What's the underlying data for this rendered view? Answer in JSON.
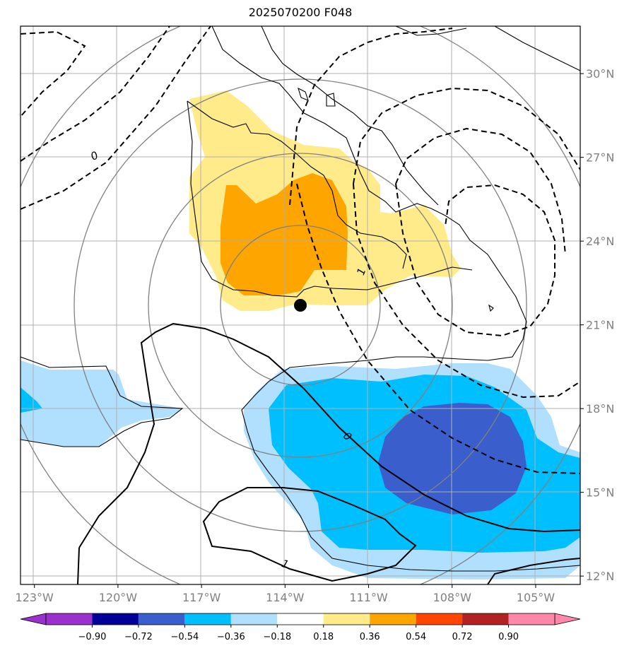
{
  "title": "2025070200 F048",
  "chart_data": {
    "type": "heatmap",
    "title": "2025070200 F048",
    "x_ticks": [
      "123°W",
      "120°W",
      "117°W",
      "114°W",
      "111°W",
      "108°W",
      "105°W"
    ],
    "y_ticks": [
      "30°N",
      "27°N",
      "24°N",
      "21°N",
      "18°N",
      "15°N",
      "12°N"
    ],
    "x_values": [
      -123,
      -120,
      -117,
      -114,
      -111,
      -108,
      -105
    ],
    "y_values": [
      30,
      27,
      24,
      21,
      18,
      15,
      12
    ],
    "xlim": [
      -123.5,
      -103.4
    ],
    "ylim": [
      11.7,
      31.7
    ],
    "grid": true,
    "colorbar": {
      "orientation": "horizontal",
      "extend": "both",
      "levels": [
        -0.9,
        -0.72,
        -0.54,
        -0.36,
        -0.18,
        0.18,
        0.36,
        0.54,
        0.72,
        0.9
      ],
      "tick_labels": [
        "−0.90",
        "−0.72",
        "−0.54",
        "−0.36",
        "−0.18",
        "0.18",
        "0.36",
        "0.54",
        "0.72",
        "0.90"
      ],
      "colors": [
        "#9932cc",
        "#000099",
        "#3a5fcd",
        "#00bfff",
        "#b0e0fe",
        "#ffffff",
        "#ffeb8a",
        "#ffa500",
        "#ff4500",
        "#b22222",
        "#ff88aa"
      ]
    },
    "contour_labels": [
      "0",
      "1",
      "0",
      "1"
    ],
    "marker": {
      "lon": -113.5,
      "lat": 21.7
    },
    "range_rings_center": {
      "lon": -113.5,
      "lat": 21.7
    }
  }
}
